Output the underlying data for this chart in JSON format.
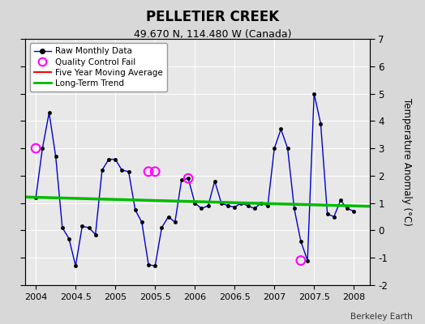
{
  "title": "PELLETIER CREEK",
  "subtitle": "49.670 N, 114.480 W (Canada)",
  "credit": "Berkeley Earth",
  "ylabel": "Temperature Anomaly (°C)",
  "ylim": [
    -2,
    7
  ],
  "xlim": [
    2003.87,
    2008.2
  ],
  "yticks": [
    -2,
    -1,
    0,
    1,
    2,
    3,
    4,
    5,
    6,
    7
  ],
  "xticks": [
    2004,
    2004.5,
    2005,
    2005.5,
    2006,
    2006.5,
    2007,
    2007.5,
    2008
  ],
  "xticklabels": [
    "2004",
    "2004.5",
    "2005",
    "2005.5",
    "2006",
    "2006.5",
    "2007",
    "2007.5",
    "2008"
  ],
  "raw_x": [
    2004.0,
    2004.083,
    2004.167,
    2004.25,
    2004.333,
    2004.417,
    2004.5,
    2004.583,
    2004.667,
    2004.75,
    2004.833,
    2004.917,
    2005.0,
    2005.083,
    2005.167,
    2005.25,
    2005.333,
    2005.417,
    2005.5,
    2005.583,
    2005.667,
    2005.75,
    2005.833,
    2005.917,
    2006.0,
    2006.083,
    2006.167,
    2006.25,
    2006.333,
    2006.417,
    2006.5,
    2006.583,
    2006.667,
    2006.75,
    2006.833,
    2006.917,
    2007.0,
    2007.083,
    2007.167,
    2007.25,
    2007.333,
    2007.417,
    2007.5,
    2007.583,
    2007.667,
    2007.75,
    2007.833,
    2007.917,
    2008.0
  ],
  "raw_y": [
    1.2,
    3.0,
    4.3,
    2.7,
    0.1,
    -0.3,
    -1.3,
    0.15,
    0.1,
    -0.15,
    2.2,
    2.6,
    2.6,
    2.2,
    2.15,
    0.75,
    0.3,
    -1.25,
    -1.3,
    0.1,
    0.5,
    0.3,
    1.85,
    1.9,
    1.0,
    0.8,
    0.9,
    1.8,
    1.0,
    0.9,
    0.85,
    1.0,
    0.9,
    0.8,
    1.0,
    0.9,
    3.0,
    3.7,
    3.0,
    0.8,
    -0.4,
    -1.1,
    5.0,
    3.9,
    0.6,
    0.5,
    1.1,
    0.8,
    0.7
  ],
  "qc_fail_x": [
    2004.0,
    2005.417,
    2005.5,
    2005.917,
    2007.333
  ],
  "qc_fail_y": [
    3.0,
    2.15,
    2.15,
    1.9,
    -1.1
  ],
  "trend_x": [
    2003.87,
    2008.2
  ],
  "trend_y": [
    1.22,
    0.88
  ],
  "raw_color": "#0000cc",
  "raw_marker_color": "#000000",
  "qc_color": "#ff00ff",
  "trend_color": "#00bb00",
  "moving_avg_color": "#ff0000",
  "background_color": "#d8d8d8",
  "plot_bg_color": "#e8e8e8",
  "grid_color": "#ffffff"
}
